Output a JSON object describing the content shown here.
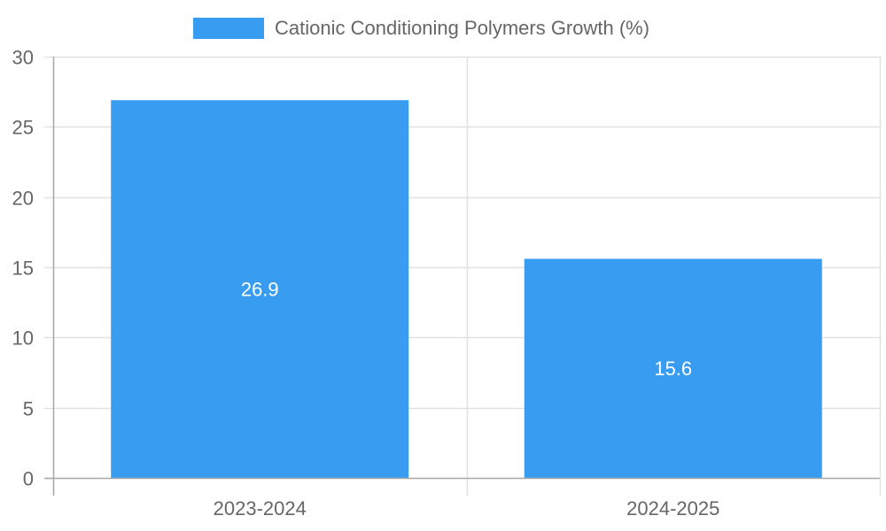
{
  "chart_data": {
    "type": "bar",
    "title": "",
    "categories": [
      "2023-2024",
      "2024-2025"
    ],
    "series": [
      {
        "name": "Cationic Conditioning Polymers Growth (%)",
        "values": [
          26.9,
          15.6
        ],
        "color": "#389cf0"
      }
    ],
    "value_labels": [
      "26.9",
      "15.6"
    ],
    "xlabel": "",
    "ylabel": "",
    "ylim": [
      0,
      30
    ],
    "yticks": [
      0,
      5,
      10,
      15,
      20,
      25,
      30
    ],
    "grid": true,
    "legend_position": "top"
  },
  "legend": {
    "label": "Cationic Conditioning Polymers Growth (%)"
  },
  "colors": {
    "bar": "#389cf0",
    "grid": "#e1e1e1",
    "axis": "#a8a8a8",
    "tick_text": "#666666",
    "bar_label": "#ffffff"
  }
}
